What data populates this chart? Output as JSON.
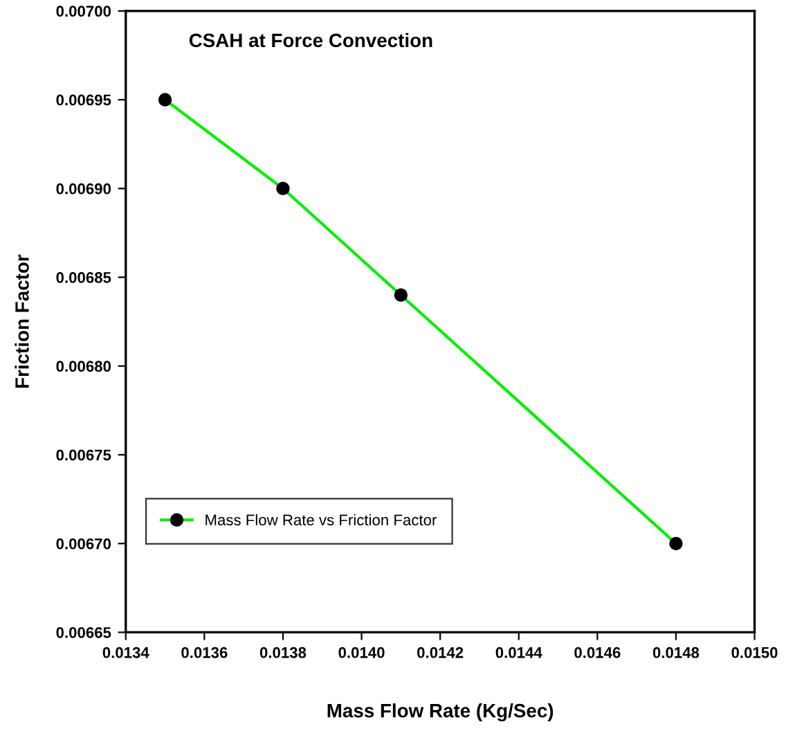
{
  "chart_data": {
    "type": "line",
    "title": "CSAH at Force Convection",
    "xlabel": "Mass Flow Rate (Kg/Sec)",
    "ylabel": "Friction Factor",
    "x": [
      0.0135,
      0.0138,
      0.0141,
      0.0148
    ],
    "series": [
      {
        "name": "Mass Flow Rate vs Friction Factor",
        "color": "#00ee00",
        "values": [
          0.00695,
          0.0069,
          0.00684,
          0.0067
        ]
      }
    ],
    "marker": "circle",
    "line_style": "solid",
    "legend": "bottom left",
    "grid": false,
    "xlim": [
      0.0134,
      0.015
    ],
    "xticks": [
      {
        "value": 0.0134,
        "label": "0.0134"
      },
      {
        "value": 0.0136,
        "label": "0.0136"
      },
      {
        "value": 0.0138,
        "label": "0.0138"
      },
      {
        "value": 0.014,
        "label": "0.0140"
      },
      {
        "value": 0.0142,
        "label": "0.0142"
      },
      {
        "value": 0.0144,
        "label": "0.0144"
      },
      {
        "value": 0.0146,
        "label": "0.0146"
      },
      {
        "value": 0.0148,
        "label": "0.0148"
      },
      {
        "value": 0.015,
        "label": "0.0150"
      }
    ],
    "ylim": [
      0.00665,
      0.007
    ],
    "yticks": [
      {
        "value": 0.00665,
        "label": "0.00665"
      },
      {
        "value": 0.0067,
        "label": "0.00670"
      },
      {
        "value": 0.00675,
        "label": "0.00675"
      },
      {
        "value": 0.0068,
        "label": "0.00680"
      },
      {
        "value": 0.00685,
        "label": "0.00685"
      },
      {
        "value": 0.0069,
        "label": "0.00690"
      },
      {
        "value": 0.00695,
        "label": "0.00695"
      },
      {
        "value": 0.007,
        "label": "0.00700"
      }
    ]
  }
}
